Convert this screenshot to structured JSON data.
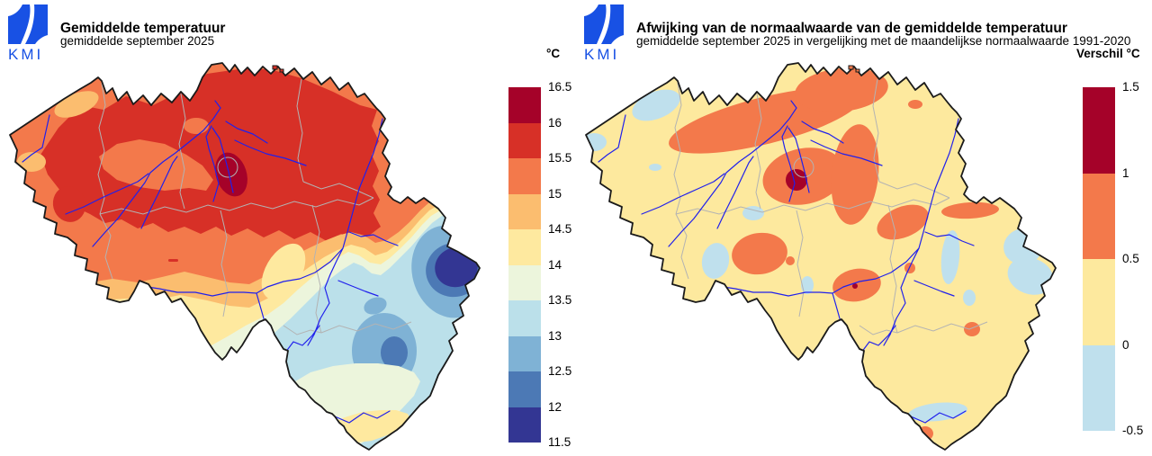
{
  "brand": {
    "logo_text": "KMI",
    "logo_color": "#1851e4"
  },
  "panels": {
    "left": {
      "title": "Gemiddelde temperatuur",
      "subtitle": "gemiddelde september 2025",
      "legend": {
        "unit_label": "°C",
        "tick_labels": [
          "16.5",
          "16",
          "15.5",
          "15",
          "14.5",
          "14",
          "13.5",
          "13",
          "12.5",
          "12",
          "11.5"
        ],
        "band_colors": [
          "#a50229",
          "#d73027",
          "#f3794b",
          "#fbbd6f",
          "#fee99f",
          "#ecf5dc",
          "#bbe0ea",
          "#7fb2d5",
          "#4c79b5",
          "#333693"
        ]
      }
    },
    "right": {
      "title": "Afwijking van de normaalwaarde van de gemiddelde temperatuur",
      "subtitle": "gemiddelde september 2025 in vergelijking met de maandelijkse normaalwaarde 1991-2020",
      "legend": {
        "unit_label": "Verschil °C",
        "tick_labels": [
          "1.5",
          "1",
          "0.5",
          "0",
          "-0.5"
        ],
        "band_colors": [
          "#a50229",
          "#f3794b",
          "#fde99e",
          "#bfe0ed"
        ]
      }
    }
  },
  "map": {
    "region_label": "Belgium",
    "country_border_color": "#1a1a1a",
    "province_border_color": "#b3b3b3",
    "river_color": "#2020ec",
    "left_map_warmest": "16-16.5 °C pocket around Brussels, 15.5-16 °C over most of Flanders",
    "left_map_coldest": "11.5-12 °C pocket in the far east (High Fens), blues over the Ardennes",
    "right_map_pattern": "mostly 0 to +0.5 °C, patches of +0.5 to +1 °C in the centre/north, small +1 to +1.5 °C spot near Brussels, few -0.5 to 0 °C patches at the coast, east and far south"
  }
}
